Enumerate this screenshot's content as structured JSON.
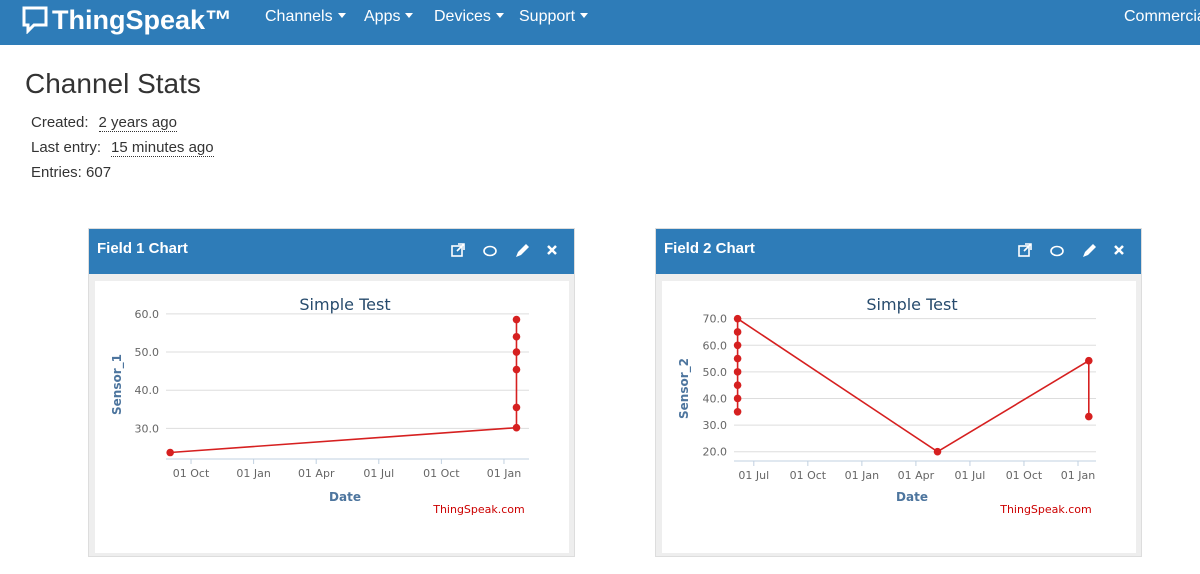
{
  "header": {
    "logo": "ThingSpeak™",
    "nav": [
      "Channels",
      "Apps",
      "Devices",
      "Support"
    ],
    "right": "Commercial"
  },
  "stats": {
    "title": "Channel Stats",
    "created_label": "Created:",
    "created": "2 years ago",
    "last_entry_label": "Last entry:",
    "last_entry": "15 minutes ago",
    "entries": "Entries: 607"
  },
  "panels": [
    {
      "title": "Field 1 Chart"
    },
    {
      "title": "Field 2 Chart"
    }
  ],
  "chart_data": [
    {
      "type": "line",
      "title": "Simple Test",
      "y_label": "Sensor_1",
      "x_label": "Date",
      "credits": "ThingSpeak.com",
      "x": [
        -1.0,
        15.6,
        15.6,
        15.6,
        15.6,
        15.6,
        15.6
      ],
      "series": [
        {
          "name": "Sensor_1",
          "color": "#d62020",
          "values": [
            23.7,
            30.2,
            35.5,
            45.4,
            50,
            54,
            58.5
          ]
        }
      ],
      "xlim": [
        -1.2,
        16.2
      ],
      "xticks": [
        {
          "value": 0,
          "label": "01 Oct"
        },
        {
          "value": 3,
          "label": "01 Jan"
        },
        {
          "value": 6,
          "label": "01 Apr"
        },
        {
          "value": 9,
          "label": "01 Jul"
        },
        {
          "value": 12,
          "label": "01 Oct"
        },
        {
          "value": 15,
          "label": "01 Jan"
        }
      ],
      "ylim": [
        22,
        61
      ],
      "yticks": [
        {
          "value": 30,
          "label": "30.0"
        },
        {
          "value": 40,
          "label": "40.0"
        },
        {
          "value": 50,
          "label": "50.0"
        },
        {
          "value": 60,
          "label": "60.0"
        }
      ],
      "grid": true
    },
    {
      "type": "line",
      "title": "Simple Test",
      "y_label": "Sensor_2",
      "x_label": "Date",
      "credits": "ThingSpeak.com",
      "x": [
        -0.9,
        -0.9,
        -0.9,
        -0.9,
        -0.9,
        -0.9,
        -0.9,
        -0.9,
        10.2,
        18.6,
        18.6
      ],
      "series": [
        {
          "name": "Sensor_2",
          "color": "#d62020",
          "values": [
            35,
            40,
            45,
            50,
            55,
            60,
            65,
            70,
            20,
            54.2,
            33.2
          ]
        }
      ],
      "xlim": [
        -1.1,
        19.0
      ],
      "xticks": [
        {
          "value": 0,
          "label": "01 Jul"
        },
        {
          "value": 3,
          "label": "01 Oct"
        },
        {
          "value": 6,
          "label": "01 Jan"
        },
        {
          "value": 9,
          "label": "01 Apr"
        },
        {
          "value": 12,
          "label": "01 Jul"
        },
        {
          "value": 15,
          "label": "01 Oct"
        },
        {
          "value": 18,
          "label": "01 Jan"
        }
      ],
      "ylim": [
        16.5,
        71
      ],
      "yticks": [
        {
          "value": 20,
          "label": "20.0"
        },
        {
          "value": 30,
          "label": "30.0"
        },
        {
          "value": 40,
          "label": "40.0"
        },
        {
          "value": 50,
          "label": "50.0"
        },
        {
          "value": 60,
          "label": "60.0"
        },
        {
          "value": 70,
          "label": "70.0"
        }
      ],
      "grid": true
    }
  ]
}
